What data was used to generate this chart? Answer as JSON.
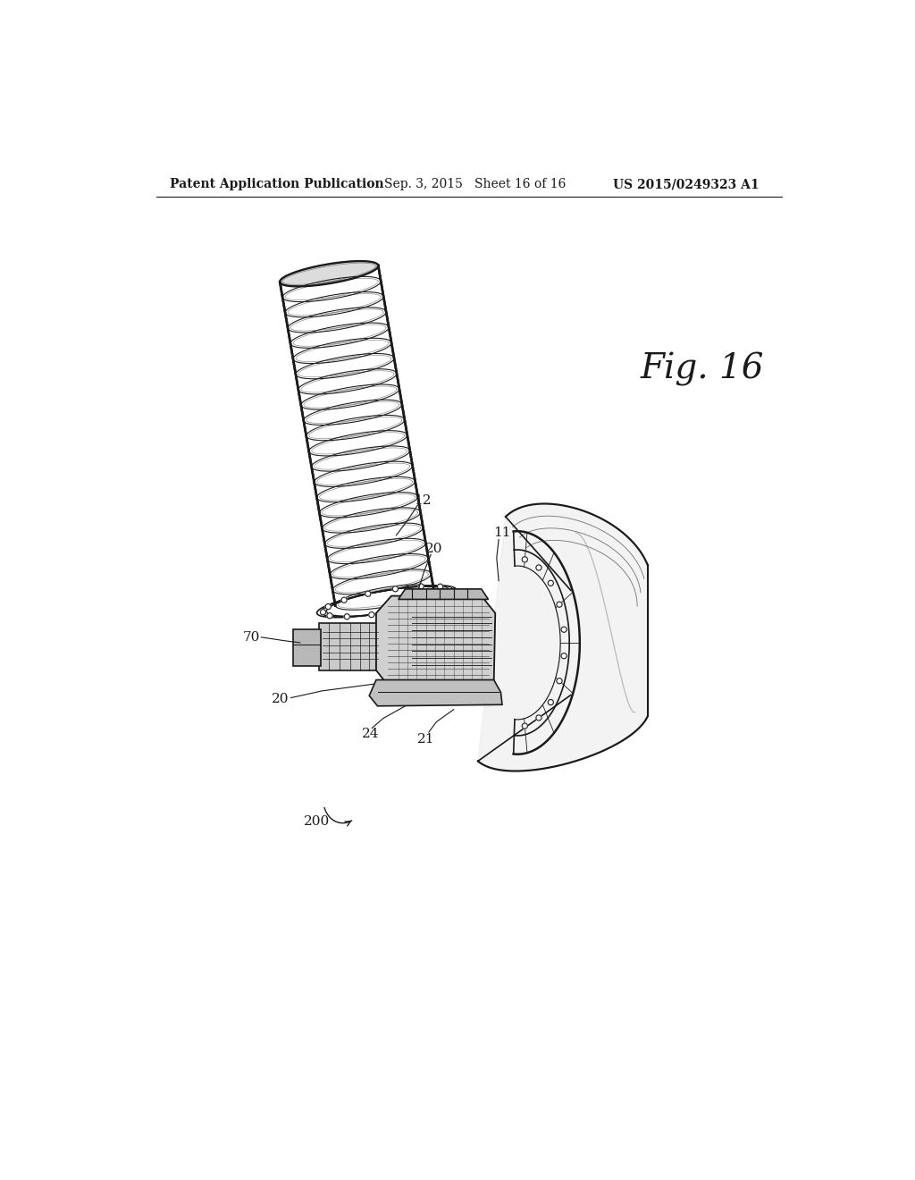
{
  "background_color": "#ffffff",
  "header_left": "Patent Application Publication",
  "header_mid": "Sep. 3, 2015   Sheet 16 of 16",
  "header_right": "US 2015/0249323 A1",
  "fig_label": "Fig. 16",
  "line_color": "#1a1a1a",
  "line_width": 1.2,
  "header_font_size": 10,
  "fig_label_font_size": 28
}
